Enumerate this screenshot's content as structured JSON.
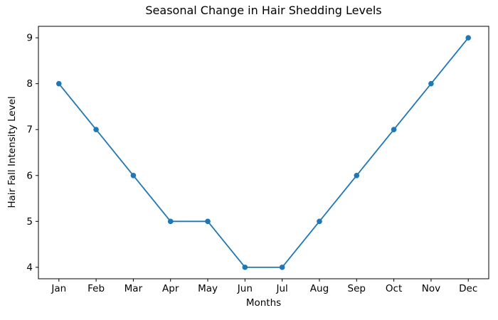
{
  "chart_data": {
    "type": "line",
    "title": "Seasonal Change in Hair Shedding Levels",
    "xlabel": "Months",
    "ylabel": "Hair Fall Intensity Level",
    "categories": [
      "Jan",
      "Feb",
      "Mar",
      "Apr",
      "May",
      "Jun",
      "Jul",
      "Aug",
      "Sep",
      "Oct",
      "Nov",
      "Dec"
    ],
    "series": [
      {
        "name": "Hair Fall Intensity Level",
        "values": [
          8,
          7,
          6,
          5,
          5,
          4,
          4,
          5,
          6,
          7,
          8,
          9
        ]
      }
    ],
    "y_ticks": [
      4,
      5,
      6,
      7,
      8,
      9
    ],
    "ylim": [
      3.75,
      9.25
    ],
    "x_margin": 0.55,
    "grid": false,
    "legend": "none",
    "line_color": "#1f77b4",
    "marker": "circle",
    "spine_color": "#000000",
    "background_color": "#ffffff"
  }
}
